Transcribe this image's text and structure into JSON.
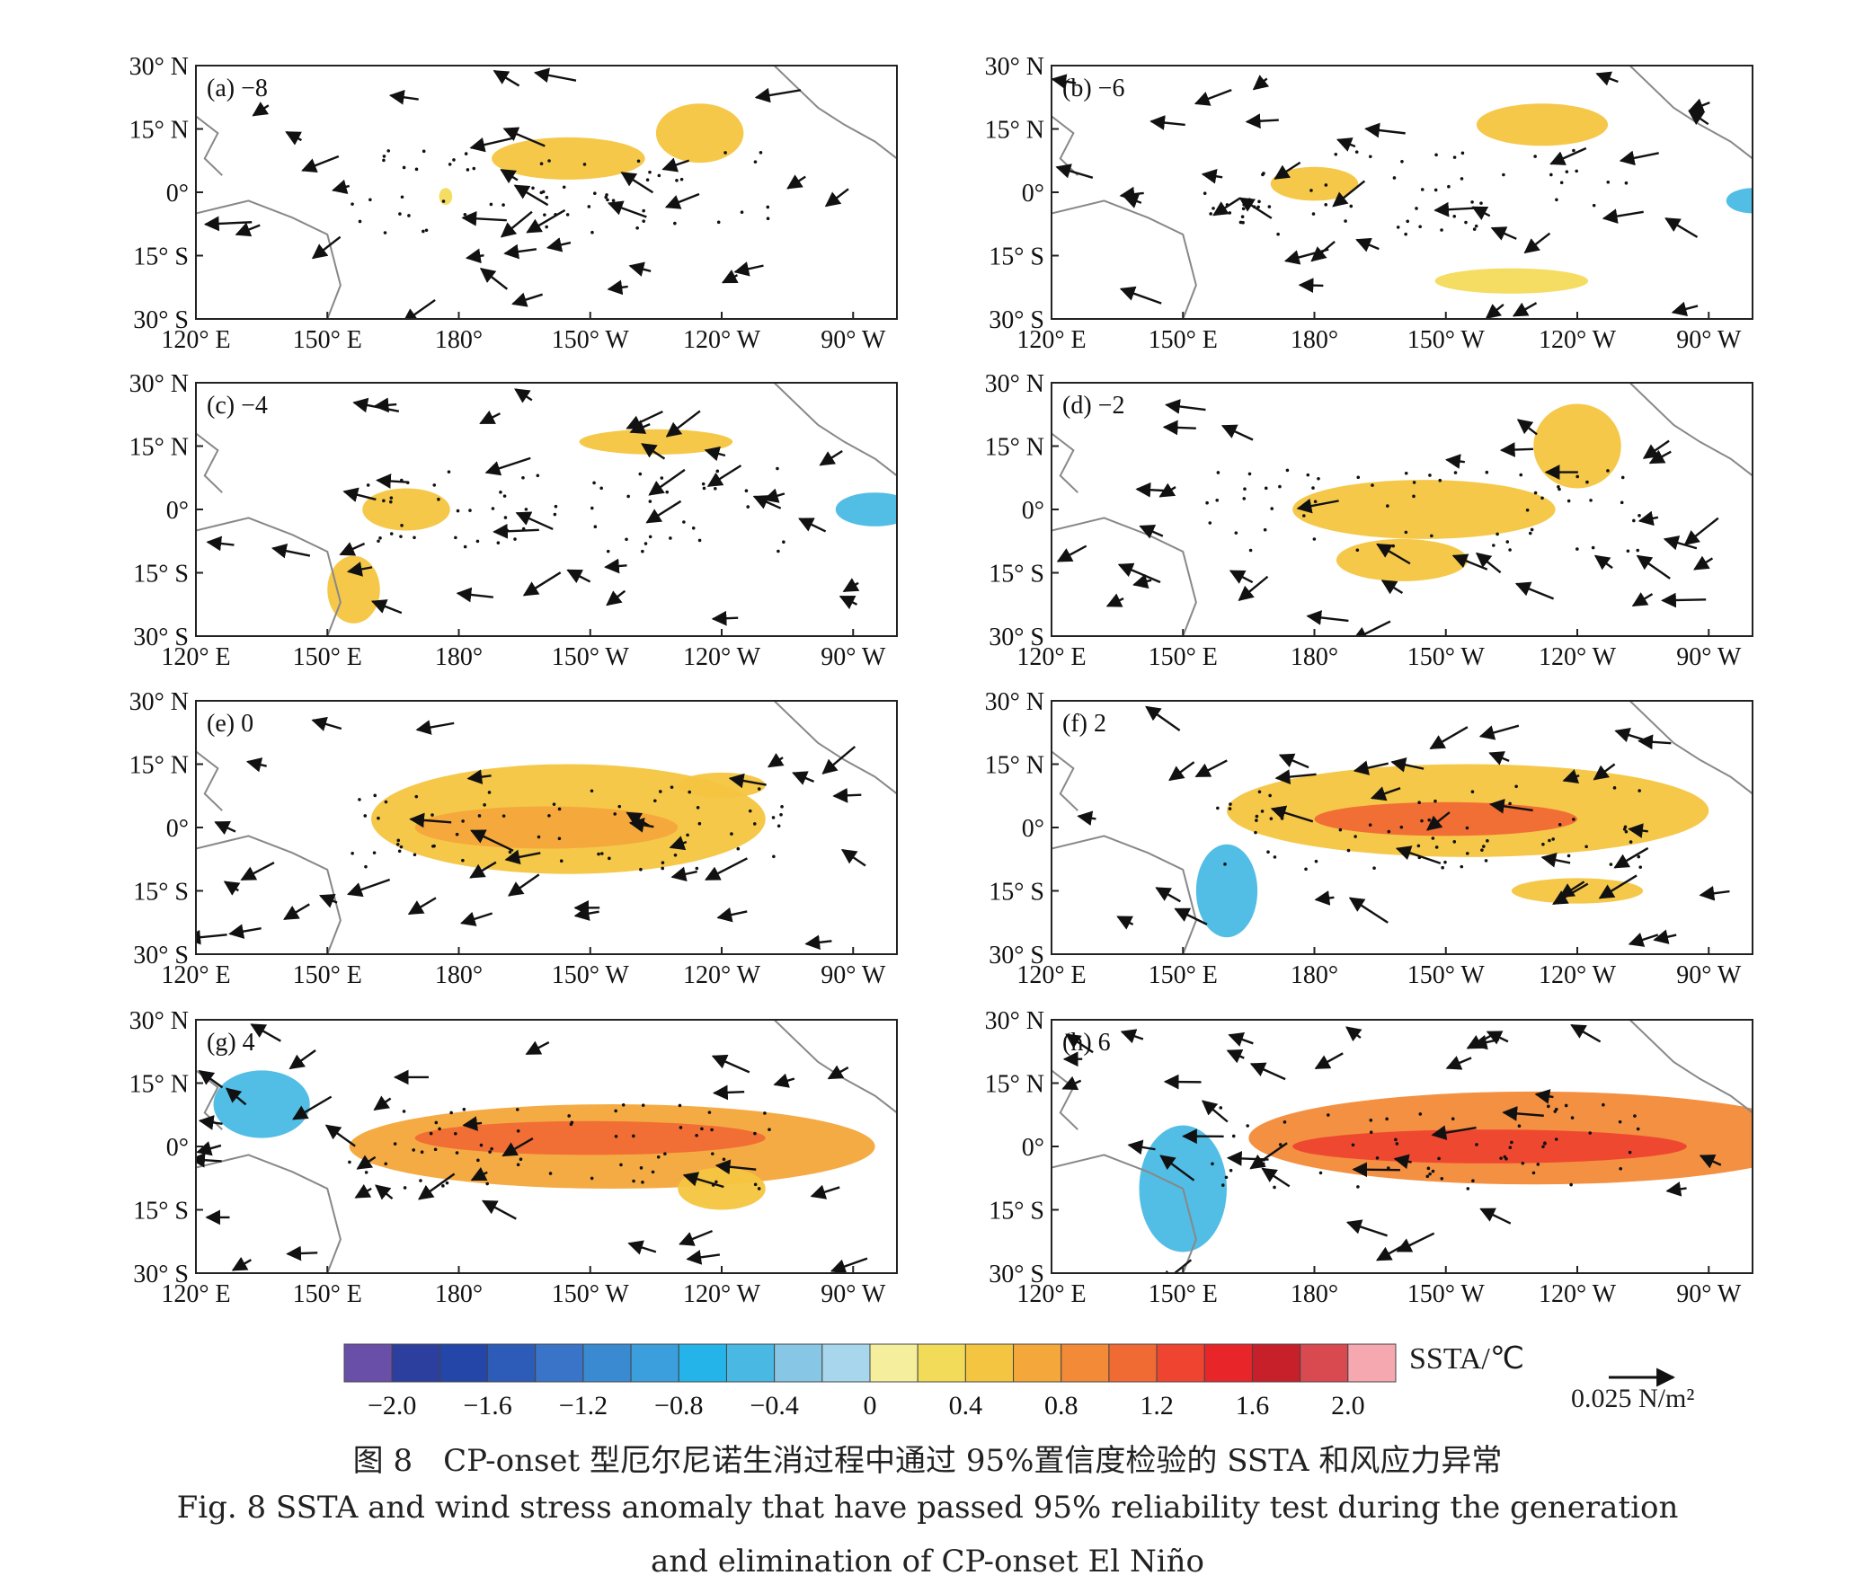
{
  "figure": {
    "caption_cn": "图 8　CP-onset 型厄尔尼诺生消过程中通过 95%置信度检验的 SSTA 和风应力异常",
    "caption_en_line1": "Fig. 8  SSTA and wind stress anomaly that have passed 95% reliability test during the generation",
    "caption_en_line2": "and elimination of CP-onset El Niño"
  },
  "axes": {
    "lat_labels": [
      "30° N",
      "15° N",
      "0°",
      "15° S",
      "30° S"
    ],
    "lon_labels": [
      "120° E",
      "150° E",
      "180°",
      "150° W",
      "120° W",
      "90° W"
    ]
  },
  "panels": [
    {
      "label": "(a) −8",
      "lag": -8,
      "anomaly": [
        {
          "lon": 205,
          "lat": 8,
          "w": 35,
          "h": 10,
          "v": 0.4
        },
        {
          "lon": 235,
          "lat": 14,
          "w": 20,
          "h": 14,
          "v": 0.5
        },
        {
          "lon": 177,
          "lat": -1,
          "w": 3,
          "h": 4,
          "v": 0.2
        }
      ]
    },
    {
      "label": "(b) −6",
      "lag": -6,
      "anomaly": [
        {
          "lon": 180,
          "lat": 2,
          "w": 20,
          "h": 8,
          "v": 0.4
        },
        {
          "lon": 232,
          "lat": 16,
          "w": 30,
          "h": 10,
          "v": 0.5
        },
        {
          "lon": 225,
          "lat": -21,
          "w": 35,
          "h": 6,
          "v": 0.3
        },
        {
          "lon": 280,
          "lat": -2,
          "w": 12,
          "h": 6,
          "v": -0.6
        }
      ]
    },
    {
      "label": "(c) −4",
      "lag": -4,
      "anomaly": [
        {
          "lon": 168,
          "lat": 0,
          "w": 20,
          "h": 10,
          "v": 0.4
        },
        {
          "lon": 225,
          "lat": 16,
          "w": 35,
          "h": 6,
          "v": 0.4
        },
        {
          "lon": 156,
          "lat": -19,
          "w": 12,
          "h": 16,
          "v": 0.4
        },
        {
          "lon": 275,
          "lat": 0,
          "w": 18,
          "h": 8,
          "v": -0.6
        }
      ]
    },
    {
      "label": "(d) −2",
      "lag": -2,
      "anomaly": [
        {
          "lon": 205,
          "lat": 0,
          "w": 60,
          "h": 14,
          "v": 0.5
        },
        {
          "lon": 240,
          "lat": 15,
          "w": 20,
          "h": 20,
          "v": 0.5
        },
        {
          "lon": 200,
          "lat": -12,
          "w": 30,
          "h": 10,
          "v": 0.4
        }
      ]
    },
    {
      "label": "(e) 0",
      "lag": 0,
      "anomaly": [
        {
          "lon": 205,
          "lat": 2,
          "w": 90,
          "h": 26,
          "v": 0.5
        },
        {
          "lon": 200,
          "lat": 0,
          "w": 60,
          "h": 10,
          "v": 0.7
        },
        {
          "lon": 240,
          "lat": 10,
          "w": 20,
          "h": 6,
          "v": 0.4
        }
      ]
    },
    {
      "label": "(f) 2",
      "lag": 2,
      "anomaly": [
        {
          "lon": 215,
          "lat": 4,
          "w": 110,
          "h": 22,
          "v": 0.6
        },
        {
          "lon": 210,
          "lat": 2,
          "w": 60,
          "h": 8,
          "v": 1.0
        },
        {
          "lon": 240,
          "lat": -15,
          "w": 30,
          "h": 6,
          "v": 0.4
        },
        {
          "lon": 160,
          "lat": -15,
          "w": 14,
          "h": 22,
          "v": -0.5
        }
      ]
    },
    {
      "label": "(g) 4",
      "lag": 4,
      "anomaly": [
        {
          "lon": 215,
          "lat": 0,
          "w": 120,
          "h": 20,
          "v": 0.7
        },
        {
          "lon": 210,
          "lat": 2,
          "w": 80,
          "h": 8,
          "v": 1.2
        },
        {
          "lon": 135,
          "lat": 10,
          "w": 22,
          "h": 16,
          "v": -0.5
        },
        {
          "lon": 240,
          "lat": -10,
          "w": 20,
          "h": 10,
          "v": 0.5
        }
      ]
    },
    {
      "label": "(h) 6",
      "lag": 6,
      "anomaly": [
        {
          "lon": 230,
          "lat": 2,
          "w": 130,
          "h": 22,
          "v": 0.8
        },
        {
          "lon": 220,
          "lat": 0,
          "w": 90,
          "h": 8,
          "v": 1.4
        },
        {
          "lon": 150,
          "lat": -10,
          "w": 20,
          "h": 30,
          "v": -0.6
        }
      ]
    }
  ],
  "colorbar": {
    "title": "SSTA/℃",
    "colors": [
      "#6a4fa8",
      "#2c3f9e",
      "#2346a8",
      "#2c5cb8",
      "#3a74c8",
      "#3a8ad2",
      "#3a9fdc",
      "#25b4ea",
      "#49b9e4",
      "#88c6e6",
      "#a8d6ec",
      "#f5ee9c",
      "#f3db5a",
      "#f4c540",
      "#f4a73a",
      "#f28a38",
      "#f06a34",
      "#ee4430",
      "#e8262a",
      "#c8202a",
      "#d94a50",
      "#f5a8b0"
    ],
    "tick_labels": [
      "−2.0",
      "−1.6",
      "−1.2",
      "−0.8",
      "−0.4",
      "0",
      "0.4",
      "0.8",
      "1.2",
      "1.6",
      "2.0"
    ]
  },
  "vector_reference": {
    "label": "0.025 N/m²"
  }
}
